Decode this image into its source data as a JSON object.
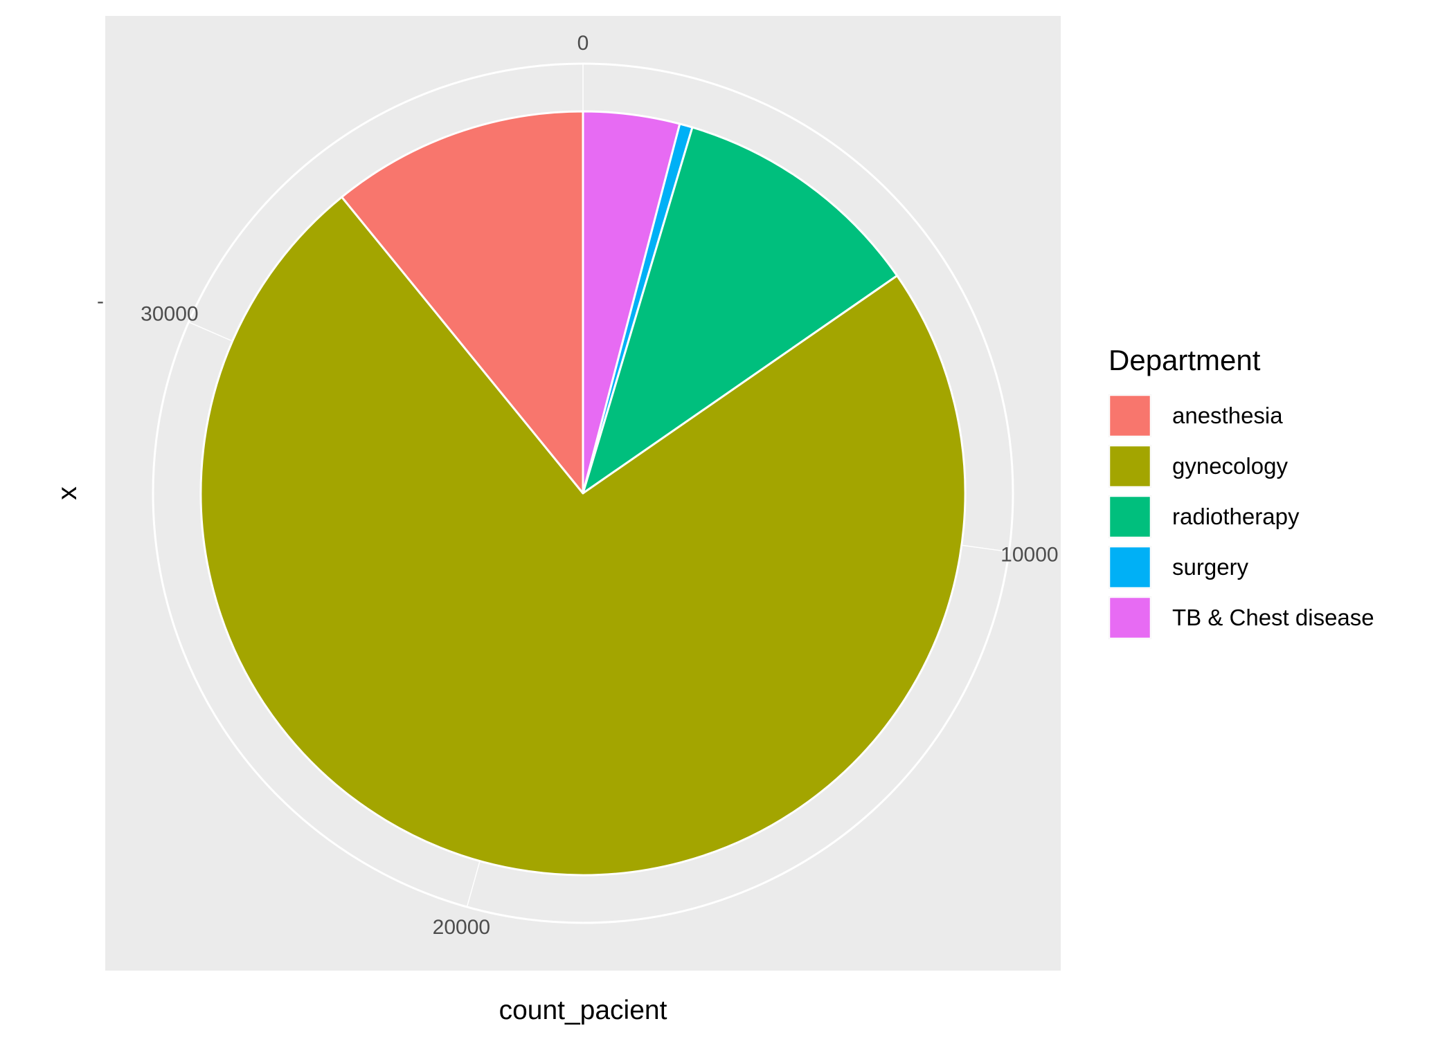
{
  "chart_data": {
    "type": "pie",
    "xlabel": "count_pacient",
    "ylabel": "x",
    "y_tick_label": "-",
    "theta_range": [
      0,
      36800
    ],
    "theta_ticks": [
      {
        "value": 0,
        "label": "0"
      },
      {
        "value": 10000,
        "label": "10000"
      },
      {
        "value": 20000,
        "label": "20000"
      },
      {
        "value": 30000,
        "label": "30000"
      }
    ],
    "legend": {
      "title": "Department",
      "placement": "right",
      "entries": [
        "anesthesia",
        "gynecology",
        "radiotherapy",
        "surgery",
        "TB & Chest disease"
      ]
    },
    "stack_order_clockwise": [
      "TB & Chest disease",
      "surgery",
      "radiotherapy",
      "gynecology",
      "anesthesia"
    ],
    "slices": [
      {
        "category": "anesthesia",
        "value": 4000,
        "color": "#F8766D"
      },
      {
        "category": "gynecology",
        "value": 27150,
        "color": "#A3A500"
      },
      {
        "category": "radiotherapy",
        "value": 3950,
        "color": "#00BF7D"
      },
      {
        "category": "surgery",
        "value": 200,
        "color": "#00B0F6"
      },
      {
        "category": "TB & Chest disease",
        "value": 1500,
        "color": "#E76BF3"
      }
    ],
    "panel_background": "#EBEBEB",
    "grid": true,
    "grid_color": "#FFFFFF"
  }
}
